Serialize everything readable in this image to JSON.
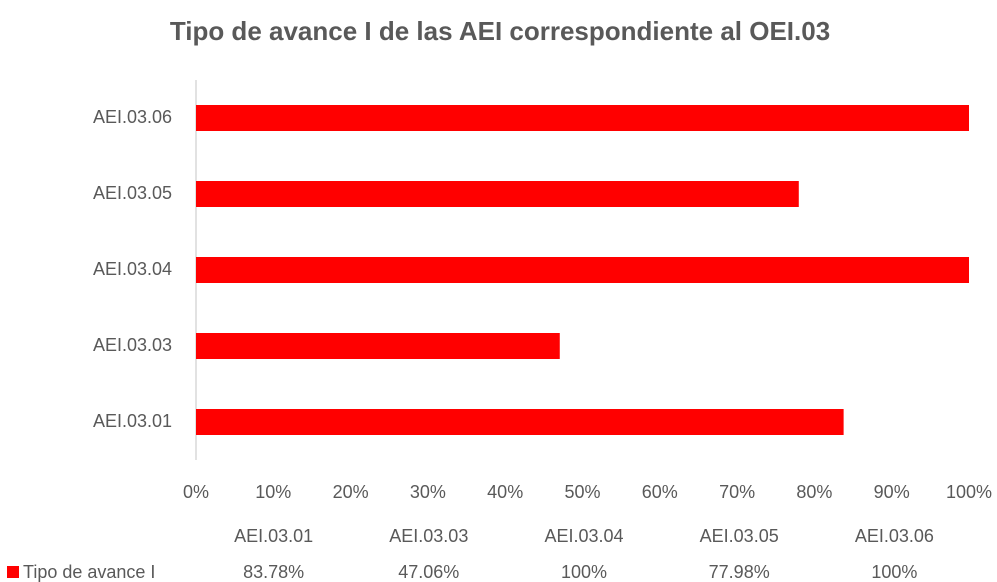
{
  "chart_data": {
    "type": "barh",
    "title": "Tipo de avance I de las AEI correspondiente al OEI.03",
    "categories": [
      "AEI.03.01",
      "AEI.03.03",
      "AEI.03.04",
      "AEI.03.05",
      "AEI.03.06"
    ],
    "series": [
      {
        "name": "Tipo de avance I",
        "color": "#ff0000",
        "values": [
          83.78,
          47.06,
          100,
          77.98,
          100
        ],
        "value_labels": [
          "83.78%",
          "47.06%",
          "100%",
          "77.98%",
          "100%"
        ]
      }
    ],
    "xlim": [
      0,
      100
    ],
    "xticks": [
      {
        "value": 0,
        "label": "0%"
      },
      {
        "value": 10,
        "label": "10%"
      },
      {
        "value": 20,
        "label": "20%"
      },
      {
        "value": 30,
        "label": "30%"
      },
      {
        "value": 40,
        "label": "40%"
      },
      {
        "value": 50,
        "label": "50%"
      },
      {
        "value": 60,
        "label": "60%"
      },
      {
        "value": 70,
        "label": "70%"
      },
      {
        "value": 80,
        "label": "80%"
      },
      {
        "value": 90,
        "label": "90%"
      },
      {
        "value": 100,
        "label": "100%"
      }
    ],
    "grid": false
  }
}
